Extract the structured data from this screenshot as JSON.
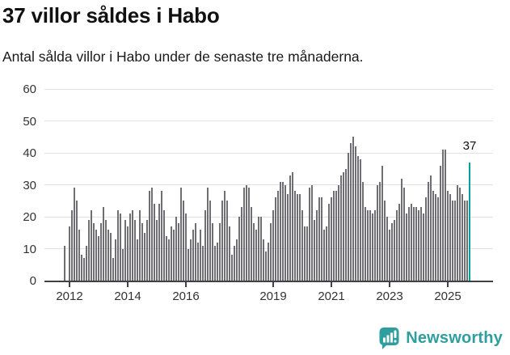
{
  "header": {
    "title": "37 villor såldes i Habo",
    "subtitle": "Antal sålda villor i Habo under de senaste tre månaderna."
  },
  "chart_data": {
    "type": "bar",
    "title": "37 villor såldes i Habo",
    "subtitle": "Antal sålda villor i Habo under de senaste tre månaderna.",
    "x_unit": "month",
    "start": "2011-11",
    "end": "2025-10",
    "values": [
      11,
      0,
      17,
      22,
      29,
      25,
      16,
      8,
      7,
      11,
      19,
      22,
      18,
      16,
      14,
      18,
      23,
      19,
      16,
      15,
      7,
      13,
      22,
      21,
      10,
      19,
      17,
      21,
      22,
      19,
      13,
      22,
      18,
      15,
      19,
      28,
      29,
      24,
      19,
      24,
      28,
      22,
      14,
      13,
      17,
      16,
      20,
      18,
      29,
      25,
      21,
      10,
      13,
      16,
      18,
      12,
      16,
      11,
      22,
      29,
      25,
      18,
      11,
      12,
      18,
      25,
      28,
      25,
      17,
      8,
      11,
      13,
      20,
      23,
      29,
      30,
      29,
      23,
      18,
      16,
      20,
      20,
      13,
      9,
      12,
      18,
      22,
      26,
      28,
      31,
      31,
      30,
      27,
      33,
      34,
      28,
      27,
      27,
      22,
      17,
      17,
      29,
      30,
      19,
      22,
      26,
      26,
      16,
      17,
      24,
      26,
      28,
      28,
      30,
      33,
      34,
      35,
      40,
      43,
      45,
      42,
      39,
      38,
      31,
      23,
      22,
      22,
      21,
      22,
      30,
      31,
      36,
      25,
      20,
      16,
      18,
      19,
      22,
      24,
      32,
      29,
      21,
      23,
      24,
      23,
      23,
      22,
      23,
      21,
      26,
      31,
      33,
      28,
      27,
      26,
      36,
      41,
      41,
      28,
      27,
      25,
      25,
      30,
      29,
      27,
      25,
      25,
      37
    ],
    "highlight_last": true,
    "highlight_value_label": "37",
    "ylim": [
      0,
      60
    ],
    "yticks": [
      0,
      10,
      20,
      30,
      40,
      50,
      60
    ],
    "xticks": [
      2012,
      2014,
      2016,
      2019,
      2021,
      2023,
      2025
    ],
    "grid": true,
    "legend": "none",
    "bar_color": "#6e6e73",
    "highlight_color": "#00a29a"
  },
  "footer": {
    "brand": "Newsworthy",
    "brand_color": "#2f9e9e",
    "logo_icon": "bar-chart-speech-bubble-icon"
  }
}
